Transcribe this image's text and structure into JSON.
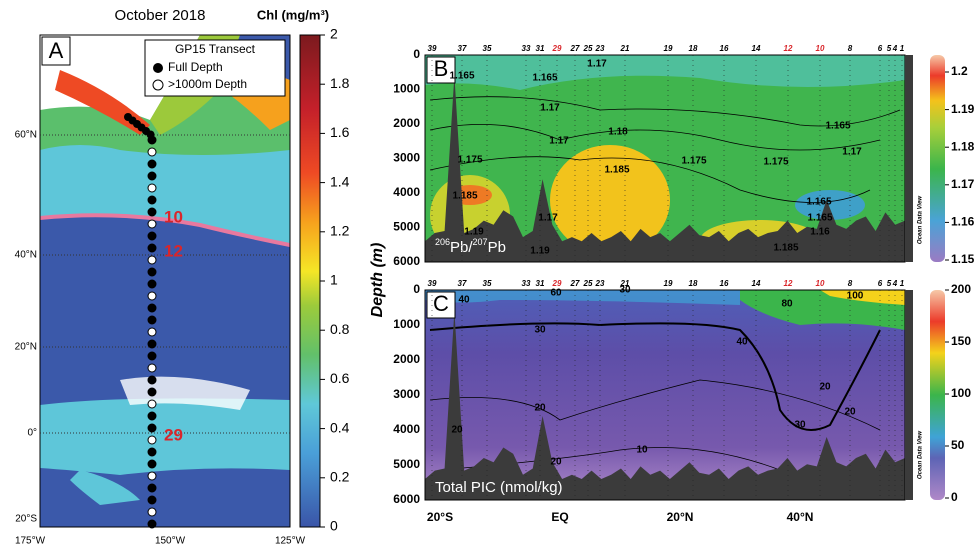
{
  "panel_a": {
    "label": "A",
    "title": "October 2018",
    "colorbar_title": "Chl (mg/m³)",
    "colorbar_ticks": [
      "0",
      "0.2",
      "0.4",
      "0.6",
      "0.8",
      "1",
      "1.2",
      "1.4",
      "1.6",
      "1.8",
      "2"
    ],
    "lat_labels": [
      "60°N",
      "40°N",
      "20°N",
      "0°",
      "20°S"
    ],
    "lon_labels": [
      "175°W",
      "150°W",
      "125°W"
    ],
    "legend": {
      "title": "GP15 Transect",
      "items": [
        "Full Depth",
        ">1000m Depth"
      ]
    },
    "station_labels": [
      "10",
      "12",
      "29"
    ]
  },
  "sections": {
    "y_axis_label": "Depth (m)",
    "depth_ticks": [
      "0",
      "1000",
      "2000",
      "3000",
      "4000",
      "5000",
      "6000"
    ],
    "x_ticks": [
      "20°S",
      "EQ",
      "20°N",
      "40°N"
    ],
    "watermark": "Ocean Data View",
    "highlight_color": "#d9262b",
    "stations": [
      {
        "label": "39"
      },
      {
        "label": "37"
      },
      {
        "label": "35"
      },
      {
        "label": "33"
      },
      {
        "label": "31"
      },
      {
        "label": "29",
        "highlight": true
      },
      {
        "label": "27"
      },
      {
        "label": "25"
      },
      {
        "label": "23"
      },
      {
        "label": "21"
      },
      {
        "label": "19"
      },
      {
        "label": "18"
      },
      {
        "label": "16"
      },
      {
        "label": "14"
      },
      {
        "label": "12",
        "highlight": true
      },
      {
        "label": "10",
        "highlight": true
      },
      {
        "label": "8"
      },
      {
        "label": "6"
      },
      {
        "label": "5"
      },
      {
        "label": "4"
      },
      {
        "label": "1"
      }
    ]
  },
  "panel_b": {
    "label": "B",
    "parameter": [
      "206",
      "Pb/",
      "207",
      "Pb"
    ],
    "colorbar_ticks": [
      "1.2",
      "1.19",
      "1.18",
      "1.17",
      "1.16",
      "1.15"
    ],
    "contour_labels": [
      "1.165",
      "1.165",
      "1.17",
      "1.17",
      "1.18",
      "1.175",
      "1.17",
      "1.185",
      "1.185",
      "1.17",
      "1.19",
      "1.175",
      "1.175",
      "1.165",
      "1.17",
      "1.165",
      "1.165",
      "1.16",
      "1.185",
      "1.19"
    ]
  },
  "panel_c": {
    "label": "C",
    "parameter": "Total PIC (nmol/kg)",
    "colorbar_ticks": [
      "200",
      "150",
      "100",
      "50",
      "0"
    ],
    "contour_labels": [
      "40",
      "30",
      "60",
      "30",
      "80",
      "100",
      "40",
      "20",
      "20",
      "10",
      "20",
      "20",
      "30",
      "20"
    ]
  }
}
